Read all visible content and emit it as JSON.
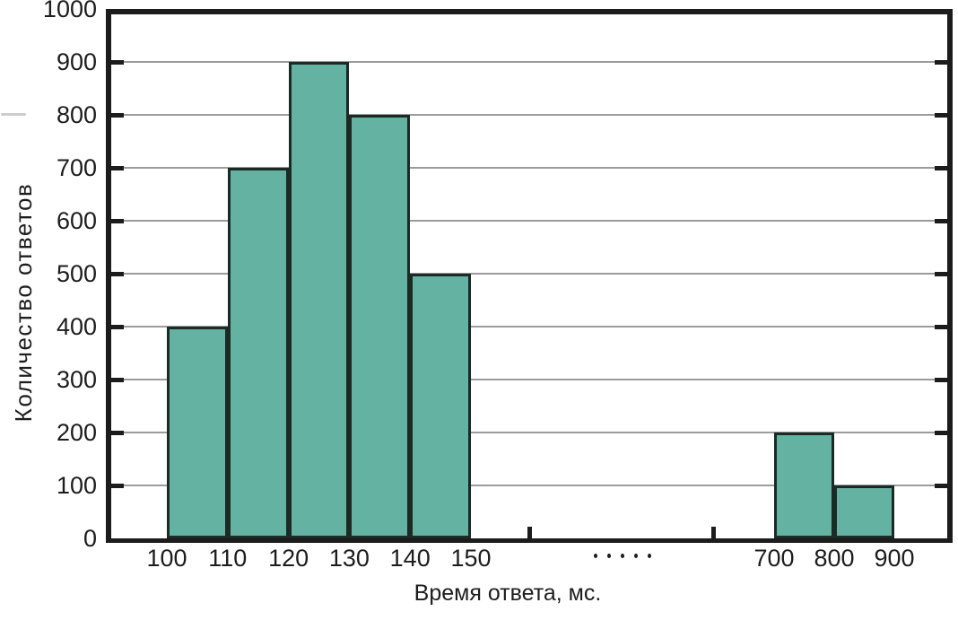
{
  "chart_data": {
    "type": "bar",
    "subtype": "histogram",
    "title": "",
    "xlabel": "Время ответа, мс.",
    "ylabel": "Количество ответов",
    "ylim": [
      0,
      1000
    ],
    "y_ticks": [
      0,
      100,
      200,
      300,
      400,
      500,
      600,
      700,
      800,
      900,
      1000
    ],
    "x_ticks": [
      100,
      110,
      120,
      130,
      140,
      150,
      700,
      800,
      900
    ],
    "axis_break_marker": "·····",
    "grid": true,
    "legend": null,
    "bins": [
      {
        "from": 100,
        "to": 110,
        "count": 400
      },
      {
        "from": 110,
        "to": 120,
        "count": 700
      },
      {
        "from": 120,
        "to": 130,
        "count": 900
      },
      {
        "from": 130,
        "to": 140,
        "count": 800
      },
      {
        "from": 140,
        "to": 150,
        "count": 500
      },
      {
        "from": 700,
        "to": 800,
        "count": 200
      },
      {
        "from": 800,
        "to": 900,
        "count": 100
      }
    ],
    "colors": {
      "bar_fill": "#64b2a1",
      "bar_border": "#1b2a24",
      "gridline": "#9b9b9b",
      "axis": "#1c1c1c",
      "text": "#1d1d1d"
    }
  }
}
